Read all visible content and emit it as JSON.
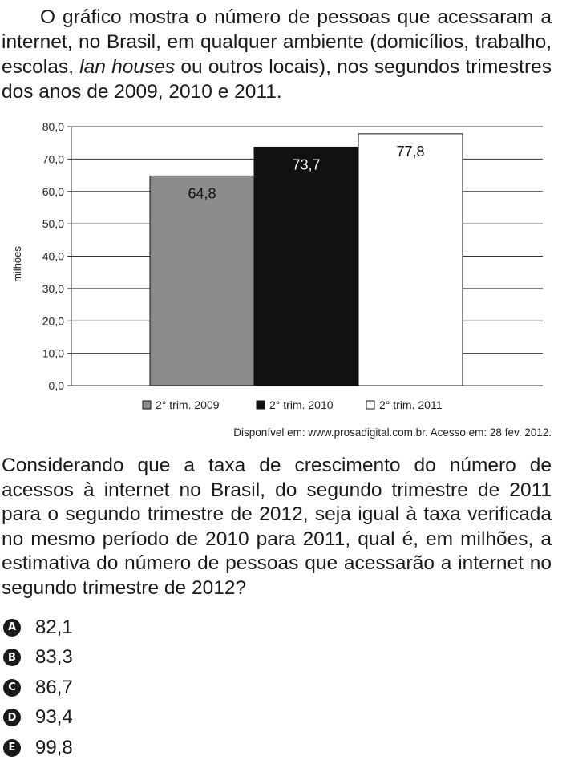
{
  "intro": {
    "part1": "O gráfico mostra o número de pessoas que acessaram a internet, no Brasil, em qualquer ambiente (domicílios, trabalho, escolas, ",
    "italic": "lan houses",
    "part2": " ou outros locais), nos segundos trimestres dos anos de 2009, 2010 e 2011."
  },
  "chart_data": {
    "type": "bar",
    "categories": [
      "2° trim. 2009",
      "2° trim. 2010",
      "2° trim. 2011"
    ],
    "values": [
      64.8,
      73.7,
      77.8
    ],
    "value_labels": [
      "64,8",
      "73,7",
      "77,8"
    ],
    "bar_colors": [
      "#8c8c8c",
      "#111111",
      "#ffffff"
    ],
    "label_colors": [
      "#111111",
      "#ffffff",
      "#111111"
    ],
    "ylabel": "milhões",
    "ylim": [
      0,
      80
    ],
    "yticks": [
      "0,0",
      "10,0",
      "20,0",
      "30,0",
      "40,0",
      "50,0",
      "60,0",
      "70,0",
      "80,0"
    ],
    "grid": true,
    "legend_position": "bottom"
  },
  "source": "Disponível em: www.prosadigital.com.br. Acesso em: 28 fev. 2012.",
  "question": "Considerando que a taxa de crescimento do número de acessos à internet no Brasil, do segundo trimestre de 2011 para o segundo trimestre de 2012, seja igual à taxa verificada no mesmo período de 2010 para 2011, qual é, em milhões, a estimativa do número de pessoas que acessarão a internet no segundo trimestre de 2012?",
  "options": [
    {
      "letter": "A",
      "text": "82,1"
    },
    {
      "letter": "B",
      "text": "83,3"
    },
    {
      "letter": "C",
      "text": "86,7"
    },
    {
      "letter": "D",
      "text": "93,4"
    },
    {
      "letter": "E",
      "text": "99,8"
    }
  ]
}
